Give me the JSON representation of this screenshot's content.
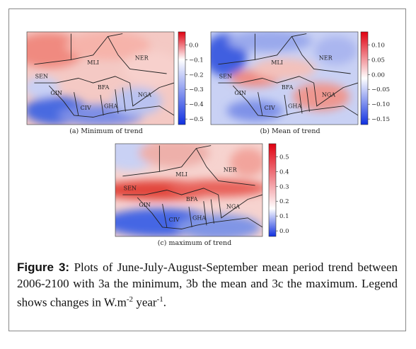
{
  "panels": [
    {
      "caption": "(a) Minimum of trend",
      "ticks": [
        "0.0",
        "−0.1",
        "−0.2",
        "−0.3",
        "−0.4",
        "−0.5"
      ],
      "countries": [
        "MLI",
        "NER",
        "SEN",
        "GIN",
        "BFA",
        "CIV",
        "GHA",
        "NGA"
      ]
    },
    {
      "caption": "(b) Mean of trend",
      "ticks": [
        "0.10",
        "0.05",
        "0.00",
        "−0.05",
        "−0.10",
        "−0.15"
      ],
      "countries": [
        "MLI",
        "NER",
        "SEN",
        "GIN",
        "BFA",
        "CIV",
        "GHA",
        "NGA"
      ]
    },
    {
      "caption": "(c) maximum of trend",
      "ticks": [
        "0.5",
        "0.4",
        "0.3",
        "0.2",
        "0.1",
        "0.0"
      ],
      "countries": [
        "MLI",
        "NER",
        "SEN",
        "GIN",
        "BFA",
        "CIV",
        "GHA",
        "NGA"
      ]
    }
  ],
  "caption": {
    "label": "Figure 3:",
    "text": " Plots of June-July-August-September mean period trend between 2006-2100 with 3a the minimum, 3b the mean and 3c the maximum. Legend shows changes in W.m",
    "sup1": "-2",
    "text2": " year",
    "sup2": "-1",
    "text3": "."
  }
}
